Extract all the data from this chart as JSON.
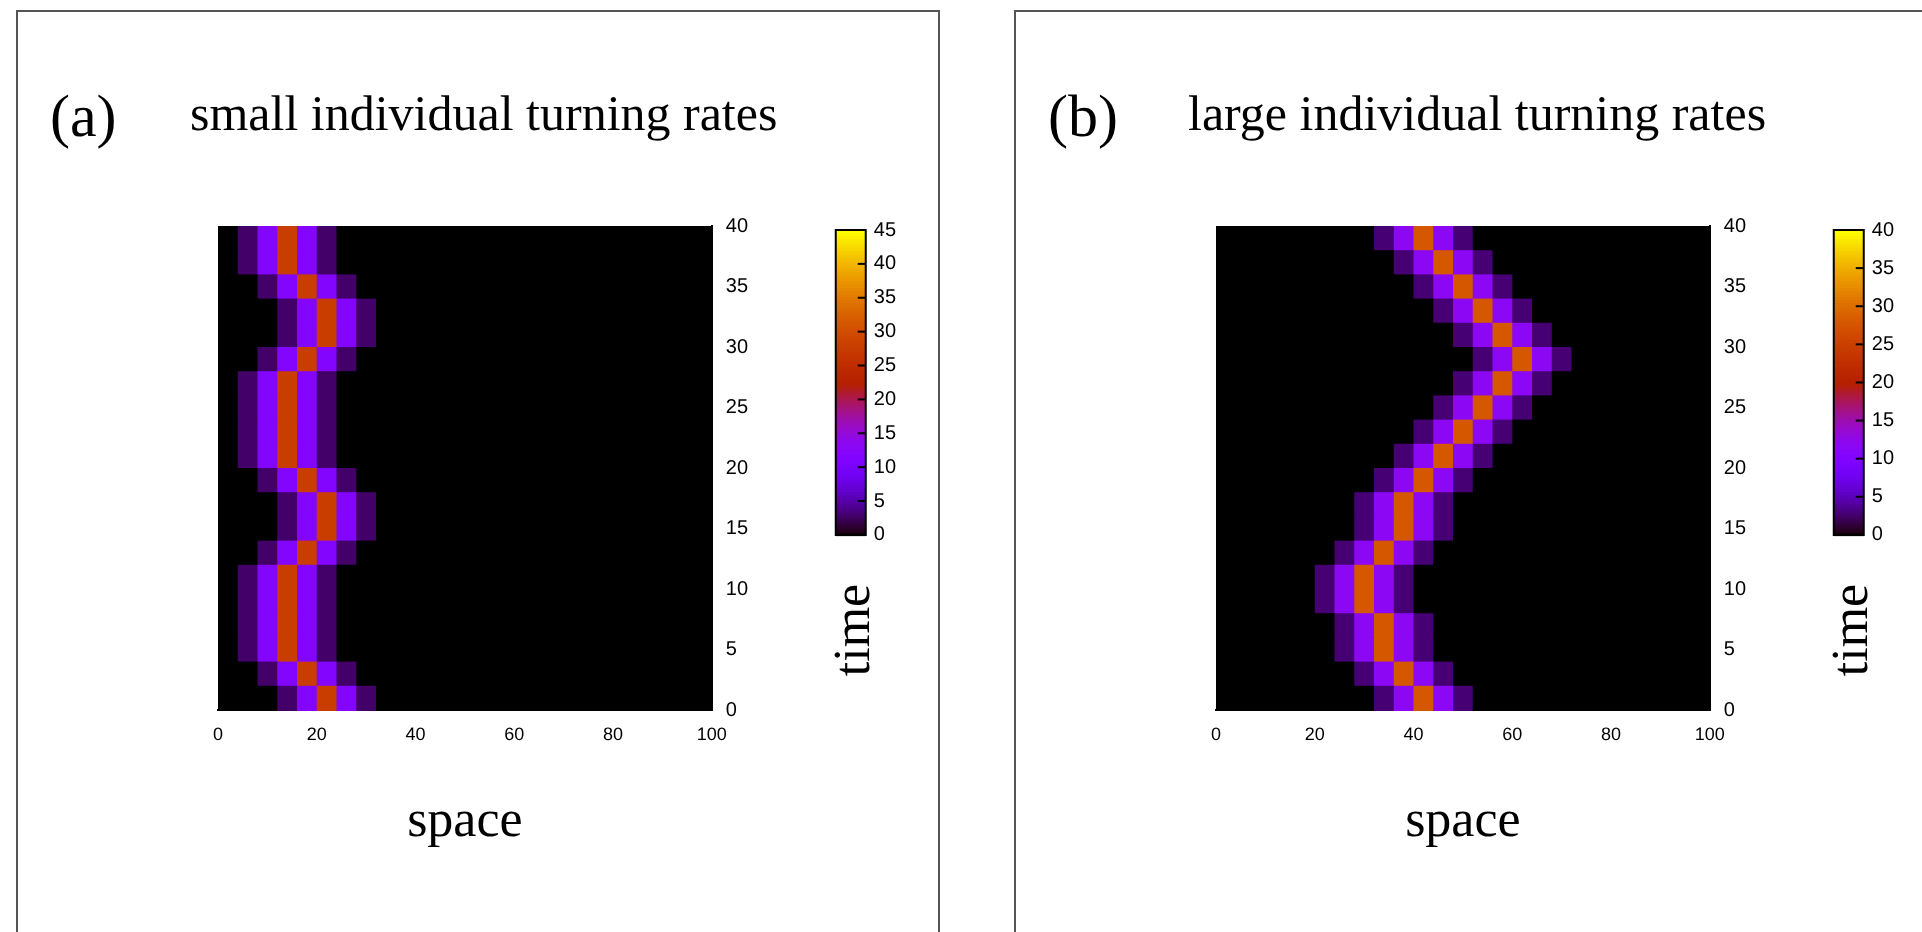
{
  "chart_data": [
    {
      "type": "heatmap",
      "title": "small individual turning rates",
      "annotations": [
        "(a)"
      ],
      "xlabel": "space",
      "ylabel": "time",
      "x": [
        2,
        6,
        10,
        14,
        18,
        22,
        26,
        30,
        34,
        38,
        42,
        46,
        50,
        54,
        58,
        62,
        66,
        70,
        74,
        78,
        82,
        86,
        90,
        94,
        98
      ],
      "y": [
        39,
        37,
        35,
        33,
        31,
        29,
        27,
        25,
        23,
        21,
        19,
        17,
        15,
        13,
        11,
        9,
        7,
        5,
        3,
        1
      ],
      "xlim": [
        0,
        100
      ],
      "xticks": [
        0,
        20,
        40,
        60,
        80,
        100
      ],
      "ylim": [
        0,
        40
      ],
      "yticks": [
        0,
        5,
        10,
        15,
        20,
        25,
        30,
        35,
        40
      ],
      "clim": [
        0,
        45
      ],
      "cticks": [
        0,
        5,
        10,
        15,
        20,
        25,
        30,
        35,
        40,
        45
      ],
      "grid": false,
      "legend": false,
      "cells": [
        [
          0,
          3,
          12,
          28,
          12,
          3,
          0,
          0,
          0,
          0,
          0,
          0,
          0,
          0,
          0,
          0,
          0,
          0,
          0,
          0,
          0,
          0,
          0,
          0,
          0
        ],
        [
          0,
          3,
          12,
          28,
          12,
          3,
          0,
          0,
          0,
          0,
          0,
          0,
          0,
          0,
          0,
          0,
          0,
          0,
          0,
          0,
          0,
          0,
          0,
          0,
          0
        ],
        [
          0,
          0,
          3,
          12,
          28,
          12,
          3,
          0,
          0,
          0,
          0,
          0,
          0,
          0,
          0,
          0,
          0,
          0,
          0,
          0,
          0,
          0,
          0,
          0,
          0
        ],
        [
          0,
          0,
          0,
          3,
          12,
          28,
          12,
          3,
          0,
          0,
          0,
          0,
          0,
          0,
          0,
          0,
          0,
          0,
          0,
          0,
          0,
          0,
          0,
          0,
          0
        ],
        [
          0,
          0,
          0,
          3,
          12,
          28,
          12,
          3,
          0,
          0,
          0,
          0,
          0,
          0,
          0,
          0,
          0,
          0,
          0,
          0,
          0,
          0,
          0,
          0,
          0
        ],
        [
          0,
          0,
          3,
          12,
          28,
          12,
          3,
          0,
          0,
          0,
          0,
          0,
          0,
          0,
          0,
          0,
          0,
          0,
          0,
          0,
          0,
          0,
          0,
          0,
          0
        ],
        [
          0,
          3,
          12,
          28,
          12,
          3,
          0,
          0,
          0,
          0,
          0,
          0,
          0,
          0,
          0,
          0,
          0,
          0,
          0,
          0,
          0,
          0,
          0,
          0,
          0
        ],
        [
          0,
          3,
          12,
          28,
          12,
          3,
          0,
          0,
          0,
          0,
          0,
          0,
          0,
          0,
          0,
          0,
          0,
          0,
          0,
          0,
          0,
          0,
          0,
          0,
          0
        ],
        [
          0,
          3,
          12,
          28,
          12,
          3,
          0,
          0,
          0,
          0,
          0,
          0,
          0,
          0,
          0,
          0,
          0,
          0,
          0,
          0,
          0,
          0,
          0,
          0,
          0
        ],
        [
          0,
          3,
          12,
          28,
          12,
          3,
          0,
          0,
          0,
          0,
          0,
          0,
          0,
          0,
          0,
          0,
          0,
          0,
          0,
          0,
          0,
          0,
          0,
          0,
          0
        ],
        [
          0,
          0,
          3,
          12,
          28,
          12,
          3,
          0,
          0,
          0,
          0,
          0,
          0,
          0,
          0,
          0,
          0,
          0,
          0,
          0,
          0,
          0,
          0,
          0,
          0
        ],
        [
          0,
          0,
          0,
          3,
          12,
          28,
          12,
          3,
          0,
          0,
          0,
          0,
          0,
          0,
          0,
          0,
          0,
          0,
          0,
          0,
          0,
          0,
          0,
          0,
          0
        ],
        [
          0,
          0,
          0,
          3,
          12,
          28,
          12,
          3,
          0,
          0,
          0,
          0,
          0,
          0,
          0,
          0,
          0,
          0,
          0,
          0,
          0,
          0,
          0,
          0,
          0
        ],
        [
          0,
          0,
          3,
          12,
          28,
          12,
          3,
          0,
          0,
          0,
          0,
          0,
          0,
          0,
          0,
          0,
          0,
          0,
          0,
          0,
          0,
          0,
          0,
          0,
          0
        ],
        [
          0,
          3,
          12,
          28,
          12,
          3,
          0,
          0,
          0,
          0,
          0,
          0,
          0,
          0,
          0,
          0,
          0,
          0,
          0,
          0,
          0,
          0,
          0,
          0,
          0
        ],
        [
          0,
          3,
          12,
          28,
          12,
          3,
          0,
          0,
          0,
          0,
          0,
          0,
          0,
          0,
          0,
          0,
          0,
          0,
          0,
          0,
          0,
          0,
          0,
          0,
          0
        ],
        [
          0,
          3,
          12,
          28,
          12,
          3,
          0,
          0,
          0,
          0,
          0,
          0,
          0,
          0,
          0,
          0,
          0,
          0,
          0,
          0,
          0,
          0,
          0,
          0,
          0
        ],
        [
          0,
          3,
          12,
          28,
          12,
          3,
          0,
          0,
          0,
          0,
          0,
          0,
          0,
          0,
          0,
          0,
          0,
          0,
          0,
          0,
          0,
          0,
          0,
          0,
          0
        ],
        [
          0,
          0,
          3,
          12,
          28,
          12,
          3,
          0,
          0,
          0,
          0,
          0,
          0,
          0,
          0,
          0,
          0,
          0,
          0,
          0,
          0,
          0,
          0,
          0,
          0
        ],
        [
          0,
          0,
          0,
          3,
          12,
          28,
          12,
          3,
          0,
          0,
          0,
          0,
          0,
          0,
          0,
          0,
          0,
          0,
          0,
          0,
          0,
          0,
          0,
          0,
          0
        ]
      ]
    },
    {
      "type": "heatmap",
      "title": "large individual turning rates",
      "annotations": [
        "(b)"
      ],
      "xlabel": "space",
      "ylabel": "time",
      "x": [
        2,
        6,
        10,
        14,
        18,
        22,
        26,
        30,
        34,
        38,
        42,
        46,
        50,
        54,
        58,
        62,
        66,
        70,
        74,
        78,
        82,
        86,
        90,
        94,
        98
      ],
      "y": [
        39,
        37,
        35,
        33,
        31,
        29,
        27,
        25,
        23,
        21,
        19,
        17,
        15,
        13,
        11,
        9,
        7,
        5,
        3,
        1
      ],
      "xlim": [
        0,
        100
      ],
      "xticks": [
        0,
        20,
        40,
        60,
        80,
        100
      ],
      "ylim": [
        0,
        40
      ],
      "yticks": [
        0,
        5,
        10,
        15,
        20,
        25,
        30,
        35,
        40
      ],
      "clim": [
        0,
        40
      ],
      "cticks": [
        0,
        5,
        10,
        15,
        20,
        25,
        30,
        35,
        40
      ],
      "grid": false,
      "legend": false,
      "cells": [
        [
          0,
          0,
          0,
          0,
          0,
          0,
          0,
          0,
          3,
          12,
          28,
          12,
          3,
          0,
          0,
          0,
          0,
          0,
          0,
          0,
          0,
          0,
          0,
          0,
          0
        ],
        [
          0,
          0,
          0,
          0,
          0,
          0,
          0,
          0,
          0,
          3,
          12,
          28,
          12,
          3,
          0,
          0,
          0,
          0,
          0,
          0,
          0,
          0,
          0,
          0,
          0
        ],
        [
          0,
          0,
          0,
          0,
          0,
          0,
          0,
          0,
          0,
          0,
          3,
          12,
          28,
          12,
          3,
          0,
          0,
          0,
          0,
          0,
          0,
          0,
          0,
          0,
          0
        ],
        [
          0,
          0,
          0,
          0,
          0,
          0,
          0,
          0,
          0,
          0,
          0,
          3,
          12,
          28,
          12,
          3,
          0,
          0,
          0,
          0,
          0,
          0,
          0,
          0,
          0
        ],
        [
          0,
          0,
          0,
          0,
          0,
          0,
          0,
          0,
          0,
          0,
          0,
          0,
          3,
          12,
          28,
          12,
          3,
          0,
          0,
          0,
          0,
          0,
          0,
          0,
          0
        ],
        [
          0,
          0,
          0,
          0,
          0,
          0,
          0,
          0,
          0,
          0,
          0,
          0,
          0,
          3,
          12,
          28,
          12,
          3,
          0,
          0,
          0,
          0,
          0,
          0,
          0
        ],
        [
          0,
          0,
          0,
          0,
          0,
          0,
          0,
          0,
          0,
          0,
          0,
          0,
          3,
          12,
          28,
          12,
          3,
          0,
          0,
          0,
          0,
          0,
          0,
          0,
          0
        ],
        [
          0,
          0,
          0,
          0,
          0,
          0,
          0,
          0,
          0,
          0,
          0,
          3,
          12,
          28,
          12,
          3,
          0,
          0,
          0,
          0,
          0,
          0,
          0,
          0,
          0
        ],
        [
          0,
          0,
          0,
          0,
          0,
          0,
          0,
          0,
          0,
          0,
          3,
          12,
          28,
          12,
          3,
          0,
          0,
          0,
          0,
          0,
          0,
          0,
          0,
          0,
          0
        ],
        [
          0,
          0,
          0,
          0,
          0,
          0,
          0,
          0,
          0,
          3,
          12,
          28,
          12,
          3,
          0,
          0,
          0,
          0,
          0,
          0,
          0,
          0,
          0,
          0,
          0
        ],
        [
          0,
          0,
          0,
          0,
          0,
          0,
          0,
          0,
          3,
          12,
          28,
          12,
          3,
          0,
          0,
          0,
          0,
          0,
          0,
          0,
          0,
          0,
          0,
          0,
          0
        ],
        [
          0,
          0,
          0,
          0,
          0,
          0,
          0,
          3,
          12,
          28,
          12,
          3,
          0,
          0,
          0,
          0,
          0,
          0,
          0,
          0,
          0,
          0,
          0,
          0,
          0
        ],
        [
          0,
          0,
          0,
          0,
          0,
          0,
          0,
          3,
          12,
          28,
          12,
          3,
          0,
          0,
          0,
          0,
          0,
          0,
          0,
          0,
          0,
          0,
          0,
          0,
          0
        ],
        [
          0,
          0,
          0,
          0,
          0,
          0,
          3,
          12,
          28,
          12,
          3,
          0,
          0,
          0,
          0,
          0,
          0,
          0,
          0,
          0,
          0,
          0,
          0,
          0,
          0
        ],
        [
          0,
          0,
          0,
          0,
          0,
          3,
          12,
          28,
          12,
          3,
          0,
          0,
          0,
          0,
          0,
          0,
          0,
          0,
          0,
          0,
          0,
          0,
          0,
          0,
          0
        ],
        [
          0,
          0,
          0,
          0,
          0,
          3,
          12,
          28,
          12,
          3,
          0,
          0,
          0,
          0,
          0,
          0,
          0,
          0,
          0,
          0,
          0,
          0,
          0,
          0,
          0
        ],
        [
          0,
          0,
          0,
          0,
          0,
          0,
          3,
          12,
          28,
          12,
          3,
          0,
          0,
          0,
          0,
          0,
          0,
          0,
          0,
          0,
          0,
          0,
          0,
          0,
          0
        ],
        [
          0,
          0,
          0,
          0,
          0,
          0,
          3,
          12,
          28,
          12,
          3,
          0,
          0,
          0,
          0,
          0,
          0,
          0,
          0,
          0,
          0,
          0,
          0,
          0,
          0
        ],
        [
          0,
          0,
          0,
          0,
          0,
          0,
          0,
          3,
          12,
          28,
          12,
          3,
          0,
          0,
          0,
          0,
          0,
          0,
          0,
          0,
          0,
          0,
          0,
          0,
          0
        ],
        [
          0,
          0,
          0,
          0,
          0,
          0,
          0,
          0,
          3,
          12,
          28,
          12,
          3,
          0,
          0,
          0,
          0,
          0,
          0,
          0,
          0,
          0,
          0,
          0,
          0
        ]
      ]
    }
  ]
}
